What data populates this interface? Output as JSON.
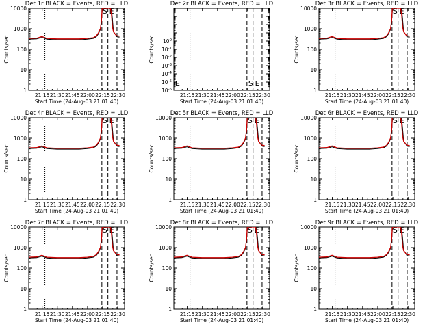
{
  "panels": [
    {
      "title": "Det 1r BLACK = Events, RED = LLD",
      "ylim": [
        1,
        10000
      ],
      "yticks": [
        "1",
        "10",
        "100",
        "1000",
        "10000"
      ],
      "mode": "normal"
    },
    {
      "title": "Det 2r BLACK = Events, RED = LLD",
      "ylim": [
        1e-06,
        10000
      ],
      "yticks": [
        "10^0",
        "10^-1",
        "10^-2",
        "10^-3",
        "10^-4",
        "10^-5",
        "10^-6"
      ],
      "mode": "empty"
    },
    {
      "title": "Det 3r BLACK = Events, RED = LLD",
      "ylim": [
        1,
        10000
      ],
      "yticks": [
        "1",
        "10",
        "100",
        "1000",
        "10000"
      ],
      "mode": "normal"
    },
    {
      "title": "Det 4r BLACK = Events, RED = LLD",
      "ylim": [
        1,
        10000
      ],
      "yticks": [
        "1",
        "10",
        "100",
        "1000",
        "10000"
      ],
      "mode": "normal"
    },
    {
      "title": "Det 5r BLACK = Events, RED = LLD",
      "ylim": [
        1,
        10000
      ],
      "yticks": [
        "1",
        "10",
        "100",
        "1000",
        "10000"
      ],
      "mode": "normal"
    },
    {
      "title": "Det 6r BLACK = Events, RED = LLD",
      "ylim": [
        1,
        10000
      ],
      "yticks": [
        "1",
        "10",
        "100",
        "1000",
        "10000"
      ],
      "mode": "normal"
    },
    {
      "title": "Det 7r BLACK = Events, RED = LLD",
      "ylim": [
        1,
        10000
      ],
      "yticks": [
        "1",
        "10",
        "100",
        "1000",
        "10000"
      ],
      "mode": "normal"
    },
    {
      "title": "Det 8r BLACK = Events, RED = LLD",
      "ylim": [
        1,
        10000
      ],
      "yticks": [
        "1",
        "10",
        "100",
        "1000",
        "10000"
      ],
      "mode": "normal"
    },
    {
      "title": "Det 9r BLACK = Events, RED = LLD",
      "ylim": [
        1,
        10000
      ],
      "yticks": [
        "1",
        "10",
        "100",
        "1000",
        "10000"
      ],
      "mode": "normal"
    }
  ],
  "shared": {
    "xticks": [
      "21:15",
      "21:30",
      "21:45",
      "22:00",
      "22:15",
      "22:30"
    ],
    "xlabel": "Start Time (24-Aug-03 21:01:40)",
    "ylabel": "Counts/sec",
    "marker_s": "S",
    "marker_e": "E",
    "marker_s_empty": "S",
    "marker_e_empty": "E",
    "marker_left_empty": "E"
  },
  "chart_data": {
    "type": "line",
    "x_unit": "minutes since 21:01:40",
    "xlim": [
      0,
      95
    ],
    "xtick_values": [
      13.33,
      28.33,
      43.33,
      58.33,
      73.33,
      88.33
    ],
    "dotted_lines_x": [
      16
    ],
    "dashed_lines_x": [
      72.5,
      78.5,
      87.5
    ],
    "black_events": {
      "x": [
        0,
        8,
        13,
        18,
        28,
        40,
        50,
        58,
        64,
        67,
        69,
        71,
        72.2,
        73,
        78,
        80,
        82,
        83,
        84,
        85,
        86,
        87,
        88,
        90
      ],
      "y": [
        310,
        320,
        380,
        310,
        290,
        290,
        290,
        310,
        340,
        410,
        560,
        900,
        2600,
        15000,
        15000,
        13000,
        9000,
        3000,
        700,
        600,
        550,
        420,
        400,
        390
      ]
    },
    "red_lld": {
      "x": [
        0,
        8,
        13,
        18,
        28,
        40,
        50,
        58,
        64,
        67,
        69,
        71,
        72,
        72.8,
        78,
        79.5,
        81,
        82,
        83,
        84,
        85,
        86,
        87,
        88,
        90
      ],
      "y": [
        340,
        350,
        420,
        340,
        320,
        320,
        320,
        340,
        370,
        450,
        620,
        1000,
        2200,
        12000,
        15000,
        14000,
        11000,
        5000,
        1200,
        700,
        620,
        520,
        470,
        450,
        440
      ]
    }
  }
}
